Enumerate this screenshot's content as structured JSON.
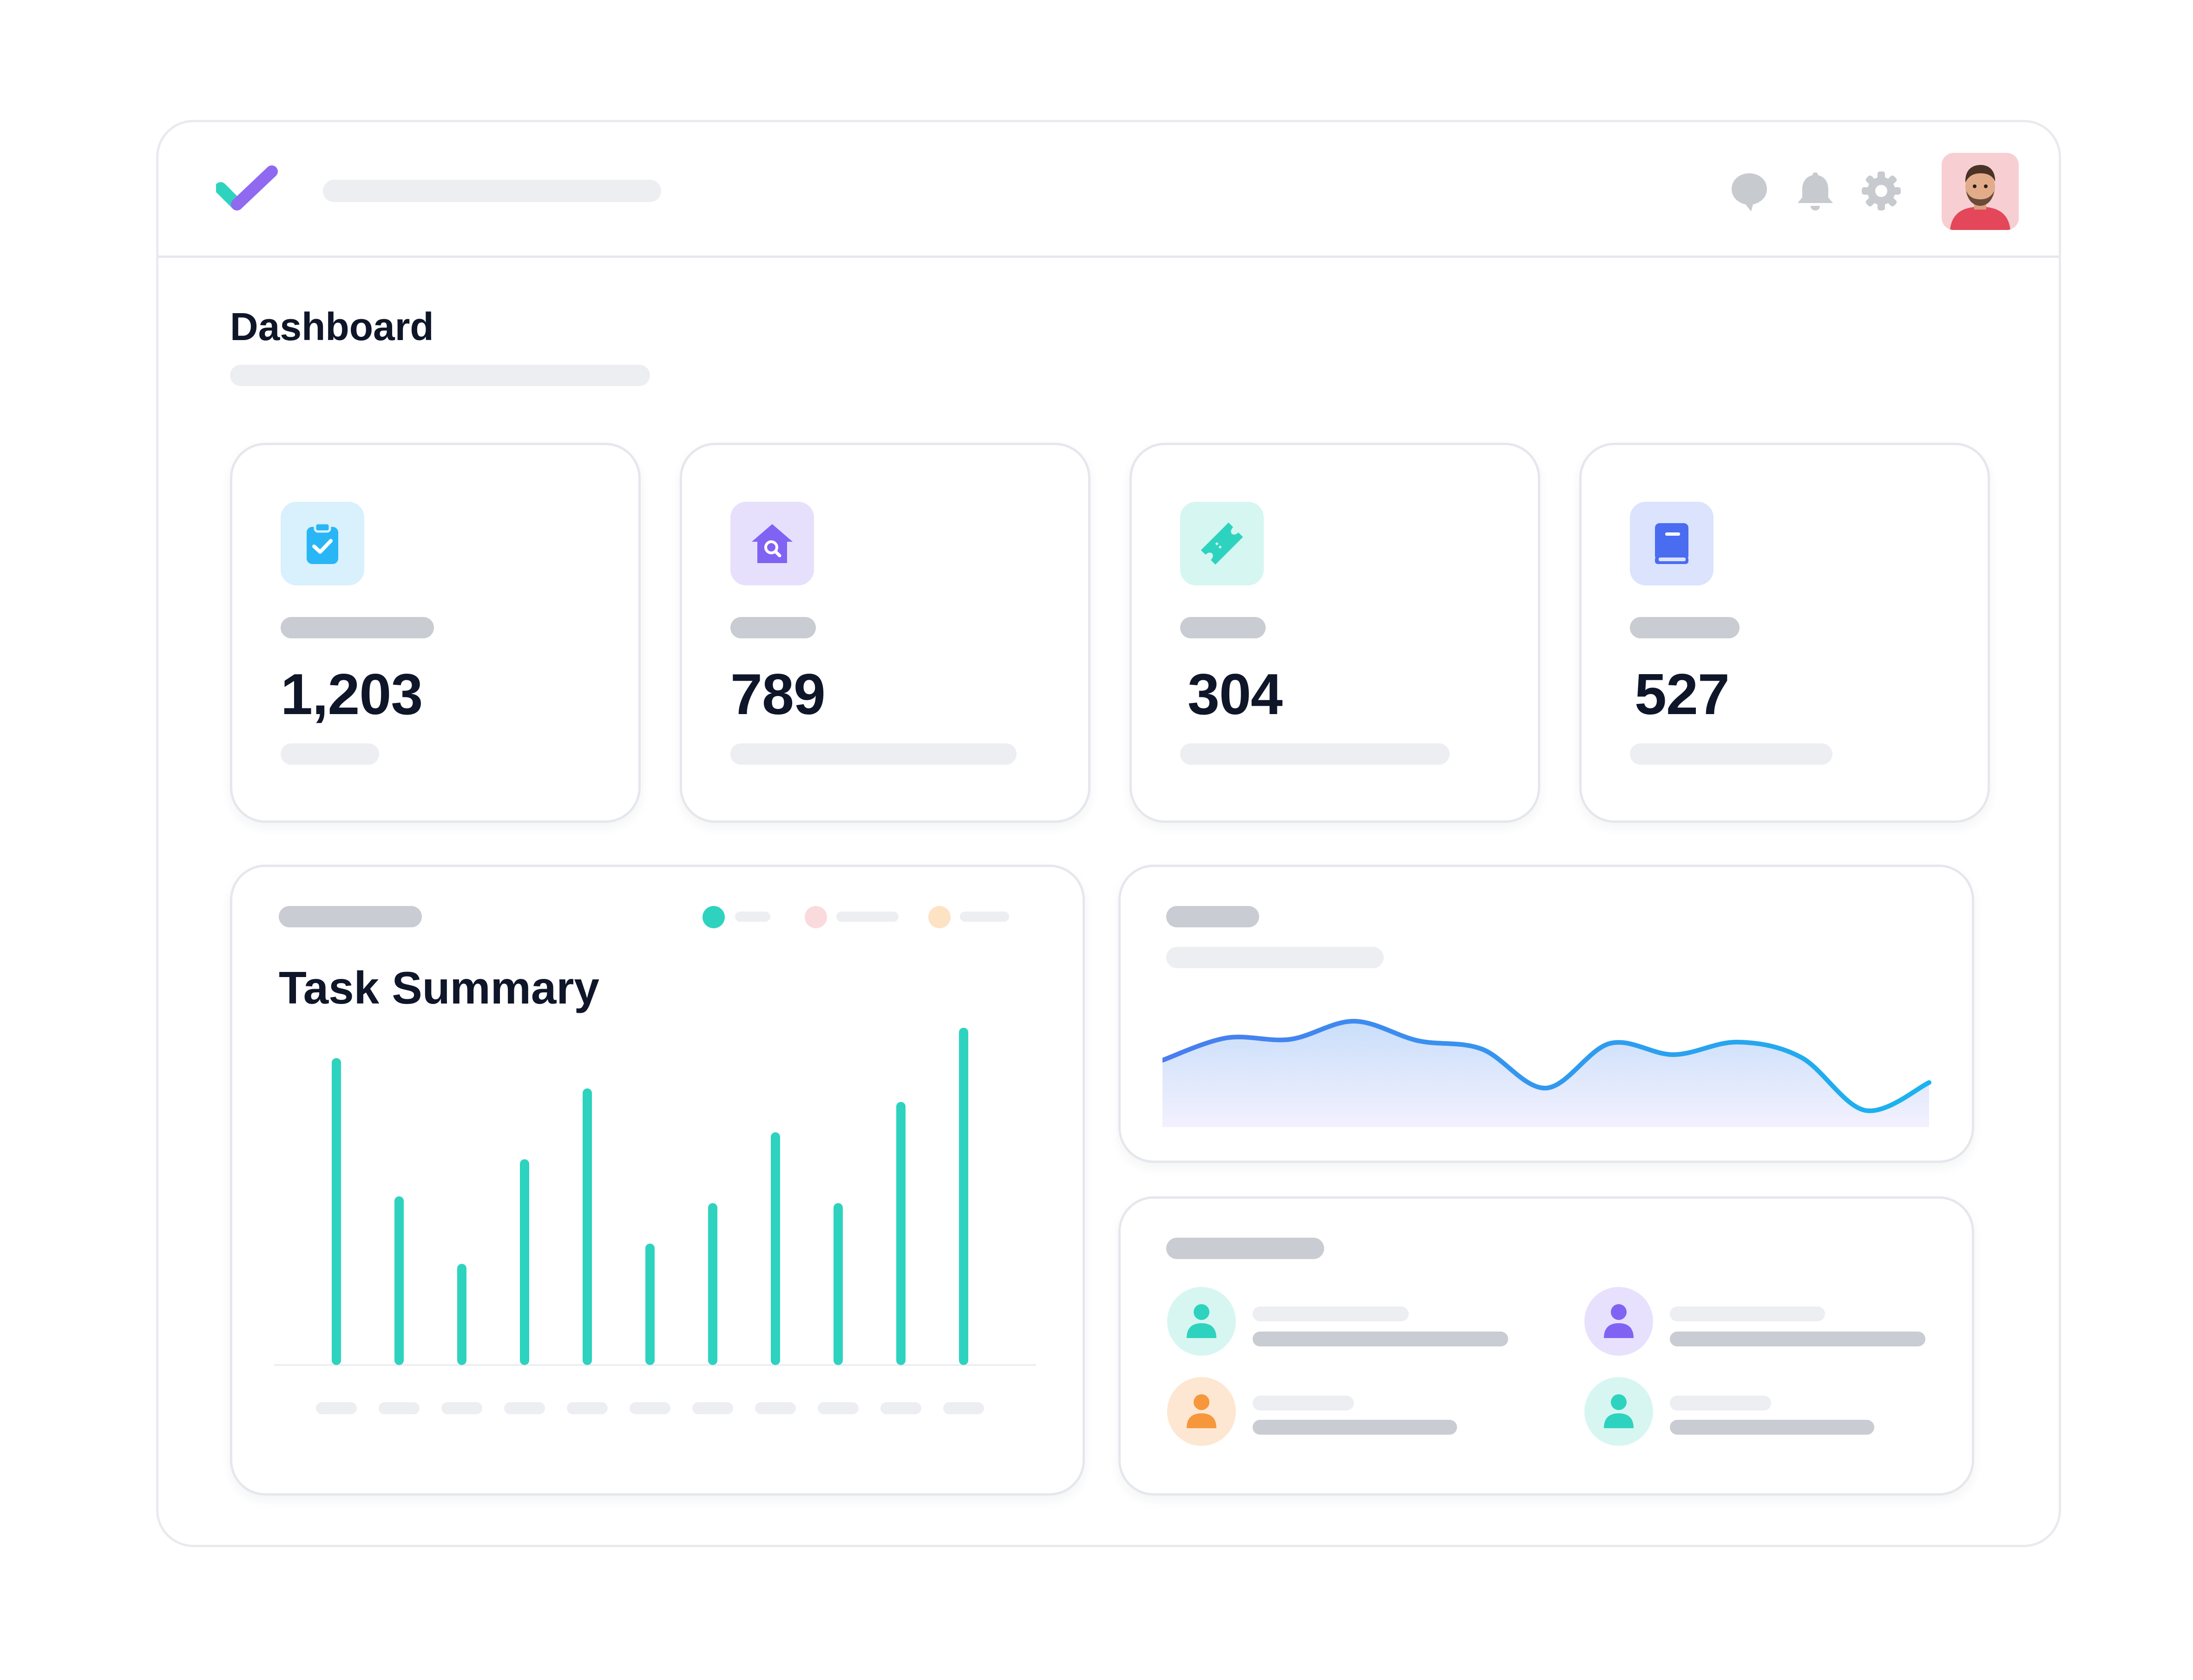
{
  "header": {
    "logo_icon": "check-logo-icon",
    "icons": [
      "chat-bubble-icon",
      "bell-icon",
      "gear-icon"
    ],
    "avatar_icon": "user-avatar"
  },
  "page": {
    "title": "Dashboard"
  },
  "stats": [
    {
      "value": "1,203",
      "icon": "clipboard-check-icon",
      "color": "#28b6f6",
      "bg": "#d9f0fd"
    },
    {
      "value": "789",
      "icon": "house-search-icon",
      "color": "#8163f3",
      "bg": "#e6e0fd"
    },
    {
      "value": "304",
      "icon": "ticket-icon",
      "color": "#2ed3bf",
      "bg": "#d6f6f1"
    },
    {
      "value": "527",
      "icon": "book-icon",
      "color": "#4a6cf1",
      "bg": "#dbe3fd"
    }
  ],
  "task_summary": {
    "title": "Task Summary",
    "legend_colors": [
      "#2ed3bf",
      "#fadadd",
      "#fde2c4"
    ]
  },
  "chart_data": [
    {
      "type": "bar",
      "title": "Task Summary",
      "categories": [
        "",
        "",
        "",
        "",
        "",
        "",
        "",
        "",
        "",
        "",
        ""
      ],
      "values": [
        91,
        50,
        30,
        61,
        82,
        36,
        48,
        69,
        48,
        78,
        100
      ],
      "ylim": [
        0,
        100
      ],
      "color": "#2ed3bf"
    },
    {
      "type": "area",
      "x": [
        0,
        1,
        2,
        3,
        4,
        5,
        6,
        7,
        8,
        9,
        10,
        11,
        12
      ],
      "values": [
        48,
        64,
        63,
        76,
        62,
        56,
        28,
        60,
        52,
        61,
        50,
        12,
        32
      ],
      "ylim": [
        0,
        100
      ],
      "color": "#2f8fe8"
    }
  ],
  "team": {
    "members": [
      {
        "icon": "user-icon",
        "color": "#2ed3bf",
        "bg": "#d8f6f1"
      },
      {
        "icon": "user-icon",
        "color": "#8163f3",
        "bg": "#e7e1fd"
      },
      {
        "icon": "user-icon",
        "color": "#f6973c",
        "bg": "#fde7d2"
      },
      {
        "icon": "user-icon",
        "color": "#2ed3bf",
        "bg": "#d8f6f1"
      }
    ]
  }
}
